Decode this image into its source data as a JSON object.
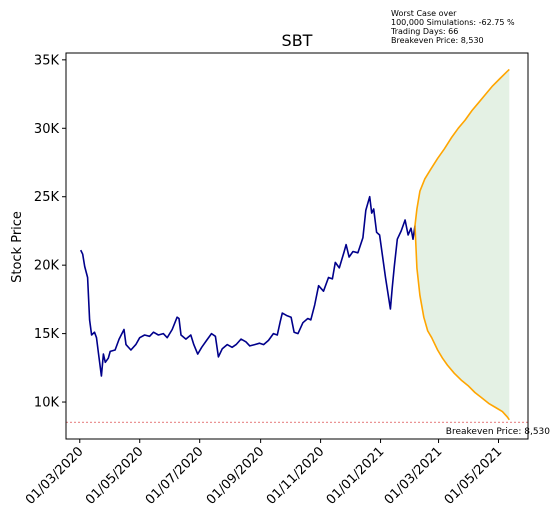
{
  "chart_data": {
    "type": "line",
    "title": "SBT",
    "ylabel": "Stock Price",
    "xlabel": "",
    "ylim": [
      7300,
      35500
    ],
    "y_ticks": [
      {
        "value": 10000,
        "label": "10K"
      },
      {
        "value": 15000,
        "label": "15K"
      },
      {
        "value": 20000,
        "label": "20K"
      },
      {
        "value": 25000,
        "label": "25K"
      },
      {
        "value": 30000,
        "label": "30K"
      },
      {
        "value": 35000,
        "label": "35K"
      }
    ],
    "x_ticks": [
      "01/03/2020",
      "01/05/2020",
      "01/07/2020",
      "01/09/2020",
      "01/11/2020",
      "01/01/2021",
      "01/03/2021",
      "01/05/2021"
    ],
    "xlim": [
      "2020-02-16",
      "2021-05-31"
    ],
    "annotation_lines": [
      "Worst Case over",
      "100,000 Simulations: -62.75 %",
      "Trading Days: 66",
      "Breakeven Price: 8,530"
    ],
    "breakeven": {
      "value": 8530,
      "label": "Breakeven Price: 8,530",
      "color": "#d62728"
    },
    "colors": {
      "history": "#00008b",
      "projection": "#ffa500",
      "band": "#e4f1e4"
    },
    "series": [
      {
        "role": "history",
        "points": [
          [
            "2020-03-02",
            21100
          ],
          [
            "2020-03-04",
            20800
          ],
          [
            "2020-03-06",
            19900
          ],
          [
            "2020-03-09",
            19100
          ],
          [
            "2020-03-11",
            16000
          ],
          [
            "2020-03-13",
            14900
          ],
          [
            "2020-03-16",
            15100
          ],
          [
            "2020-03-18",
            14700
          ],
          [
            "2020-03-20",
            13600
          ],
          [
            "2020-03-23",
            11900
          ],
          [
            "2020-03-25",
            13500
          ],
          [
            "2020-03-27",
            12900
          ],
          [
            "2020-03-30",
            13200
          ],
          [
            "2020-04-01",
            13700
          ],
          [
            "2020-04-06",
            13800
          ],
          [
            "2020-04-10",
            14600
          ],
          [
            "2020-04-15",
            15300
          ],
          [
            "2020-04-17",
            14200
          ],
          [
            "2020-04-22",
            13800
          ],
          [
            "2020-04-27",
            14200
          ],
          [
            "2020-05-01",
            14700
          ],
          [
            "2020-05-06",
            14900
          ],
          [
            "2020-05-11",
            14800
          ],
          [
            "2020-05-15",
            15100
          ],
          [
            "2020-05-20",
            14900
          ],
          [
            "2020-05-25",
            15000
          ],
          [
            "2020-05-29",
            14700
          ],
          [
            "2020-06-03",
            15300
          ],
          [
            "2020-06-08",
            16200
          ],
          [
            "2020-06-10",
            16100
          ],
          [
            "2020-06-12",
            14900
          ],
          [
            "2020-06-17",
            14600
          ],
          [
            "2020-06-22",
            14900
          ],
          [
            "2020-06-25",
            14200
          ],
          [
            "2020-06-29",
            13500
          ],
          [
            "2020-07-03",
            14000
          ],
          [
            "2020-07-08",
            14500
          ],
          [
            "2020-07-13",
            15000
          ],
          [
            "2020-07-17",
            14800
          ],
          [
            "2020-07-20",
            13300
          ],
          [
            "2020-07-24",
            13900
          ],
          [
            "2020-07-29",
            14200
          ],
          [
            "2020-08-03",
            14000
          ],
          [
            "2020-08-07",
            14200
          ],
          [
            "2020-08-12",
            14600
          ],
          [
            "2020-08-17",
            14400
          ],
          [
            "2020-08-21",
            14100
          ],
          [
            "2020-08-26",
            14200
          ],
          [
            "2020-08-31",
            14300
          ],
          [
            "2020-09-04",
            14200
          ],
          [
            "2020-09-09",
            14500
          ],
          [
            "2020-09-14",
            15000
          ],
          [
            "2020-09-18",
            14900
          ],
          [
            "2020-09-21",
            15900
          ],
          [
            "2020-09-23",
            16500
          ],
          [
            "2020-09-28",
            16300
          ],
          [
            "2020-10-02",
            16200
          ],
          [
            "2020-10-05",
            15100
          ],
          [
            "2020-10-09",
            15000
          ],
          [
            "2020-10-14",
            15800
          ],
          [
            "2020-10-19",
            16100
          ],
          [
            "2020-10-22",
            16000
          ],
          [
            "2020-10-26",
            17100
          ],
          [
            "2020-10-30",
            18500
          ],
          [
            "2020-11-04",
            18100
          ],
          [
            "2020-11-09",
            19100
          ],
          [
            "2020-11-13",
            19000
          ],
          [
            "2020-11-16",
            20200
          ],
          [
            "2020-11-20",
            19800
          ],
          [
            "2020-11-25",
            21000
          ],
          [
            "2020-11-27",
            21500
          ],
          [
            "2020-11-30",
            20600
          ],
          [
            "2020-12-04",
            21000
          ],
          [
            "2020-12-09",
            20900
          ],
          [
            "2020-12-14",
            22000
          ],
          [
            "2020-12-17",
            24000
          ],
          [
            "2020-12-21",
            25000
          ],
          [
            "2020-12-23",
            23800
          ],
          [
            "2020-12-25",
            24100
          ],
          [
            "2020-12-28",
            22400
          ],
          [
            "2020-12-31",
            22200
          ],
          [
            "2021-01-06",
            19100
          ],
          [
            "2021-01-11",
            16800
          ],
          [
            "2021-01-13",
            18400
          ],
          [
            "2021-01-15",
            19900
          ],
          [
            "2021-01-18",
            21900
          ],
          [
            "2021-01-22",
            22500
          ],
          [
            "2021-01-26",
            23300
          ],
          [
            "2021-01-29",
            22200
          ],
          [
            "2021-02-01",
            22700
          ],
          [
            "2021-02-03",
            21900
          ],
          [
            "2021-02-05",
            22900
          ]
        ]
      },
      {
        "role": "projection-upper",
        "points": [
          [
            "2021-02-05",
            22900
          ],
          [
            "2021-02-07",
            24100
          ],
          [
            "2021-02-10",
            25400
          ],
          [
            "2021-02-15",
            26300
          ],
          [
            "2021-02-21",
            27000
          ],
          [
            "2021-02-28",
            27800
          ],
          [
            "2021-03-07",
            28500
          ],
          [
            "2021-03-14",
            29300
          ],
          [
            "2021-03-21",
            30000
          ],
          [
            "2021-03-28",
            30600
          ],
          [
            "2021-04-04",
            31300
          ],
          [
            "2021-04-11",
            31900
          ],
          [
            "2021-04-18",
            32500
          ],
          [
            "2021-04-25",
            33100
          ],
          [
            "2021-05-02",
            33600
          ],
          [
            "2021-05-09",
            34100
          ],
          [
            "2021-05-12",
            34300
          ]
        ]
      },
      {
        "role": "projection-lower",
        "points": [
          [
            "2021-02-05",
            22900
          ],
          [
            "2021-02-07",
            19800
          ],
          [
            "2021-02-10",
            17800
          ],
          [
            "2021-02-14",
            16200
          ],
          [
            "2021-02-18",
            15200
          ],
          [
            "2021-02-22",
            14700
          ],
          [
            "2021-02-28",
            13800
          ],
          [
            "2021-03-05",
            13200
          ],
          [
            "2021-03-10",
            12700
          ],
          [
            "2021-03-17",
            12100
          ],
          [
            "2021-03-24",
            11600
          ],
          [
            "2021-03-31",
            11200
          ],
          [
            "2021-04-07",
            10700
          ],
          [
            "2021-04-14",
            10300
          ],
          [
            "2021-04-21",
            9900
          ],
          [
            "2021-04-28",
            9600
          ],
          [
            "2021-05-05",
            9300
          ],
          [
            "2021-05-10",
            8900
          ],
          [
            "2021-05-12",
            8700
          ]
        ]
      }
    ]
  }
}
